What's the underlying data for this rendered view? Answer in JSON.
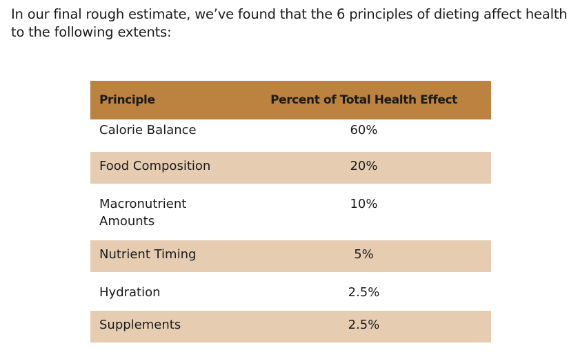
{
  "intro": {
    "text": "In our final rough estimate, we’ve found that the 6 principles of dieting affect health to the following extents:"
  },
  "table": {
    "headers": {
      "principle": "Principle",
      "percent": "Percent of Total Health Effect"
    },
    "rows": [
      {
        "principle": "Calorie Balance",
        "percent": "60%"
      },
      {
        "principle": "Food Composition",
        "percent": "20%"
      },
      {
        "principle": "Macronutrient Amounts",
        "percent": "10%"
      },
      {
        "principle": "Nutrient Timing",
        "percent": "5%"
      },
      {
        "principle": "Hydration",
        "percent": "2.5%"
      },
      {
        "principle": "Supplements",
        "percent": "2.5%"
      }
    ]
  },
  "colors": {
    "header_bg": "#bb833f",
    "alt_row_bg": "#e6cdb2",
    "text": "#1a1a1a"
  }
}
